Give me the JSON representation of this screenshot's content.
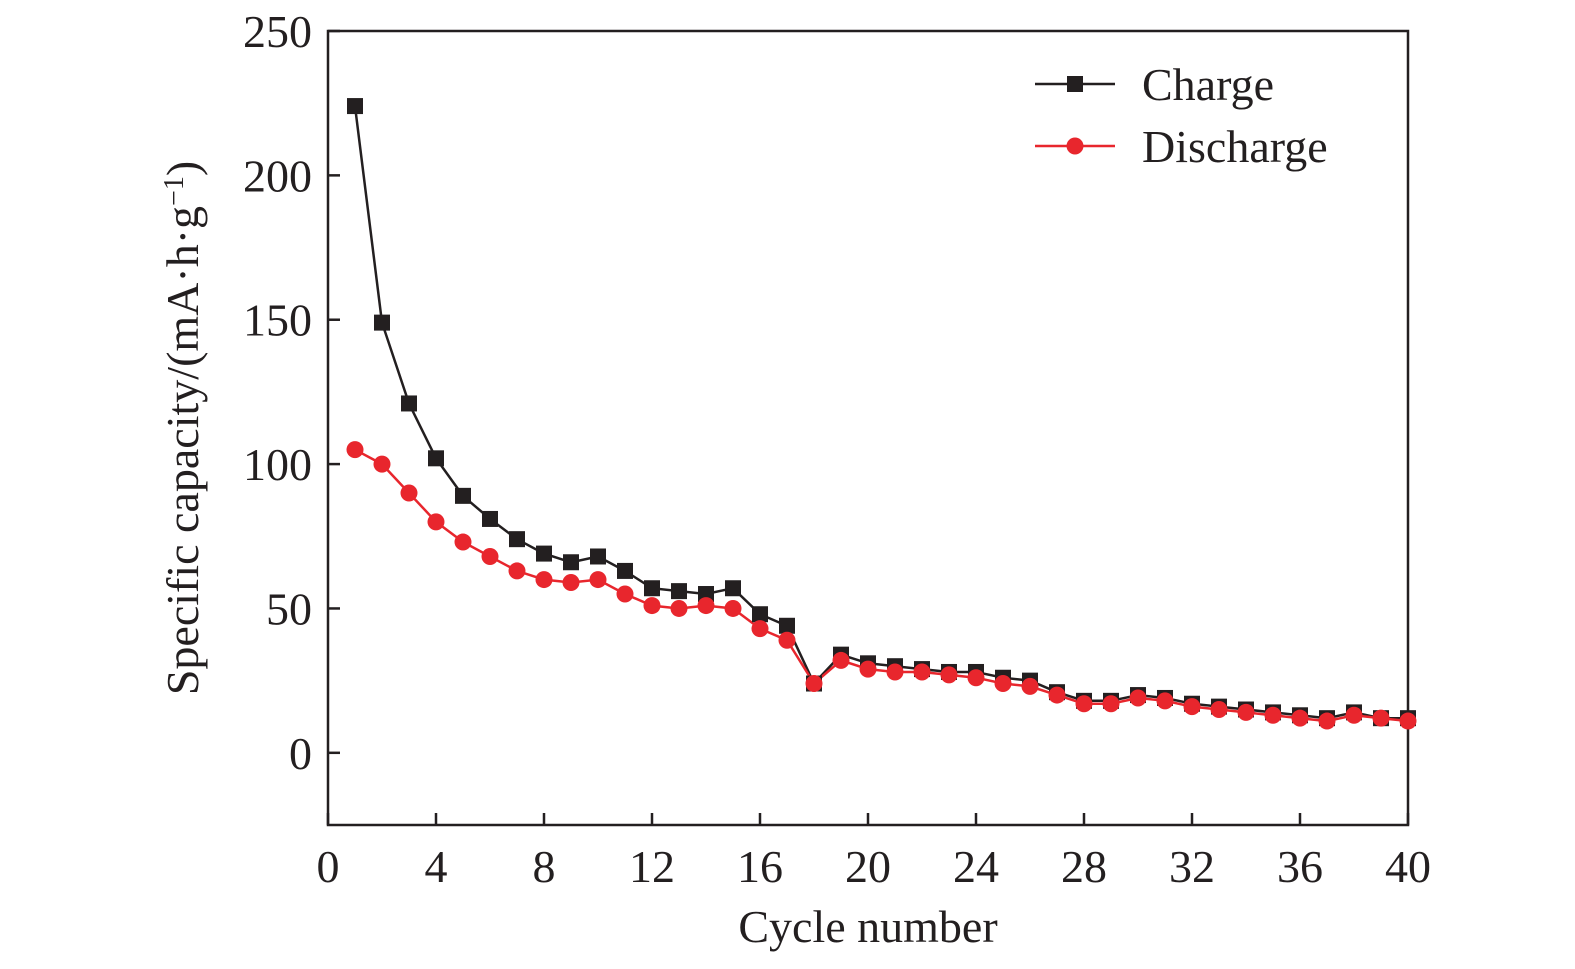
{
  "chart_data": {
    "type": "line",
    "xlabel": "Cycle number",
    "ylabel": "Specific capacity/(mA·h·g",
    "ylabel_sup": "−1",
    "ylabel_close": ")",
    "xlim": [
      0,
      40
    ],
    "ylim": [
      -25,
      250
    ],
    "xticks": [
      0,
      4,
      8,
      12,
      16,
      20,
      24,
      28,
      32,
      36,
      40
    ],
    "yticks": [
      0,
      50,
      100,
      150,
      200,
      250
    ],
    "grid": false,
    "legend_position": "top-right",
    "x": [
      1,
      2,
      3,
      4,
      5,
      6,
      7,
      8,
      9,
      10,
      11,
      12,
      13,
      14,
      15,
      16,
      17,
      18,
      19,
      20,
      21,
      22,
      23,
      24,
      25,
      26,
      27,
      28,
      29,
      30,
      31,
      32,
      33,
      34,
      35,
      36,
      37,
      38,
      39,
      40
    ],
    "series": [
      {
        "name": "Charge",
        "color": "#231f20",
        "marker": "square",
        "values": [
          224,
          149,
          121,
          102,
          89,
          81,
          74,
          69,
          66,
          68,
          63,
          57,
          56,
          55,
          57,
          48,
          44,
          24,
          34,
          31,
          30,
          29,
          28,
          28,
          26,
          25,
          21,
          18,
          18,
          20,
          19,
          17,
          16,
          15,
          14,
          13,
          12,
          14,
          12,
          12
        ]
      },
      {
        "name": "Discharge",
        "color": "#e8262d",
        "marker": "circle",
        "values": [
          105,
          100,
          90,
          80,
          73,
          68,
          63,
          60,
          59,
          60,
          55,
          51,
          50,
          51,
          50,
          43,
          39,
          24,
          32,
          29,
          28,
          28,
          27,
          26,
          24,
          23,
          20,
          17,
          17,
          19,
          18,
          16,
          15,
          14,
          13,
          12,
          11,
          13,
          12,
          11
        ]
      }
    ]
  }
}
